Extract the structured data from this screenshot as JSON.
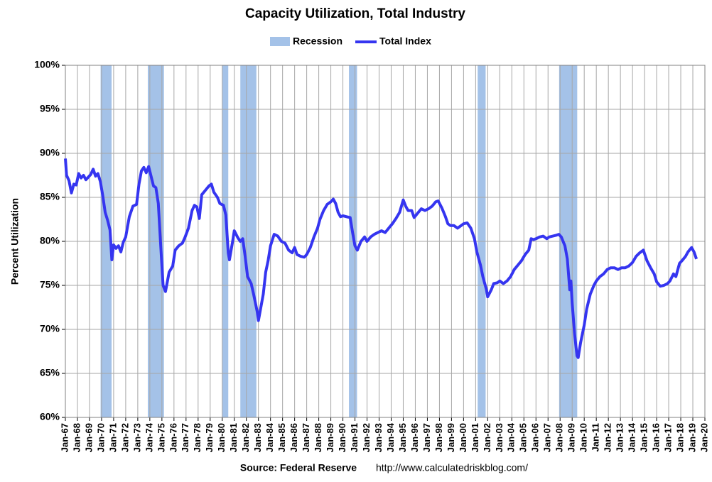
{
  "chart_data": {
    "type": "line",
    "title": "Capacity Utilization, Total Industry",
    "y_label": "Percent Utilization",
    "source": "Source: Federal Reserve",
    "url": "http://www.calculatedriskblog.com/",
    "legend": "top",
    "grid": true,
    "xlim": [
      1967,
      2020
    ],
    "ylim": [
      60,
      100
    ],
    "yticks": [
      {
        "value": 60,
        "label": "60%"
      },
      {
        "value": 65,
        "label": "65%"
      },
      {
        "value": 70,
        "label": "70%"
      },
      {
        "value": 75,
        "label": "75%"
      },
      {
        "value": 80,
        "label": "80%"
      },
      {
        "value": 85,
        "label": "85%"
      },
      {
        "value": 90,
        "label": "90%"
      },
      {
        "value": 95,
        "label": "95%"
      },
      {
        "value": 100,
        "label": "100%"
      }
    ],
    "xticks": [
      {
        "value": 1967,
        "label": "Jan-67"
      },
      {
        "value": 1968,
        "label": "Jan-68"
      },
      {
        "value": 1969,
        "label": "Jan-69"
      },
      {
        "value": 1970,
        "label": "Jan-70"
      },
      {
        "value": 1971,
        "label": "Jan-71"
      },
      {
        "value": 1972,
        "label": "Jan-72"
      },
      {
        "value": 1973,
        "label": "Jan-73"
      },
      {
        "value": 1974,
        "label": "Jan-74"
      },
      {
        "value": 1975,
        "label": "Jan-75"
      },
      {
        "value": 1976,
        "label": "Jan-76"
      },
      {
        "value": 1977,
        "label": "Jan-77"
      },
      {
        "value": 1978,
        "label": "Jan-78"
      },
      {
        "value": 1979,
        "label": "Jan-79"
      },
      {
        "value": 1980,
        "label": "Jan-80"
      },
      {
        "value": 1981,
        "label": "Jan-81"
      },
      {
        "value": 1982,
        "label": "Jan-82"
      },
      {
        "value": 1983,
        "label": "Jan-83"
      },
      {
        "value": 1984,
        "label": "Jan-84"
      },
      {
        "value": 1985,
        "label": "Jan-85"
      },
      {
        "value": 1986,
        "label": "Jan-86"
      },
      {
        "value": 1987,
        "label": "Jan-87"
      },
      {
        "value": 1988,
        "label": "Jan-88"
      },
      {
        "value": 1989,
        "label": "Jan-89"
      },
      {
        "value": 1990,
        "label": "Jan-90"
      },
      {
        "value": 1991,
        "label": "Jan-91"
      },
      {
        "value": 1992,
        "label": "Jan-92"
      },
      {
        "value": 1993,
        "label": "Jan-93"
      },
      {
        "value": 1994,
        "label": "Jan-94"
      },
      {
        "value": 1995,
        "label": "Jan-95"
      },
      {
        "value": 1996,
        "label": "Jan-96"
      },
      {
        "value": 1997,
        "label": "Jan-97"
      },
      {
        "value": 1998,
        "label": "Jan-98"
      },
      {
        "value": 1999,
        "label": "Jan-99"
      },
      {
        "value": 2000,
        "label": "Jan-00"
      },
      {
        "value": 2001,
        "label": "Jan-01"
      },
      {
        "value": 2002,
        "label": "Jan-02"
      },
      {
        "value": 2003,
        "label": "Jan-03"
      },
      {
        "value": 2004,
        "label": "Jan-04"
      },
      {
        "value": 2005,
        "label": "Jan-05"
      },
      {
        "value": 2006,
        "label": "Jan-06"
      },
      {
        "value": 2007,
        "label": "Jan-07"
      },
      {
        "value": 2008,
        "label": "Jan-08"
      },
      {
        "value": 2009,
        "label": "Jan-09"
      },
      {
        "value": 2010,
        "label": "Jan-10"
      },
      {
        "value": 2011,
        "label": "Jan-11"
      },
      {
        "value": 2012,
        "label": "Jan-12"
      },
      {
        "value": 2013,
        "label": "Jan-13"
      },
      {
        "value": 2014,
        "label": "Jan-14"
      },
      {
        "value": 2015,
        "label": "Jan-15"
      },
      {
        "value": 2016,
        "label": "Jan-16"
      },
      {
        "value": 2017,
        "label": "Jan-17"
      },
      {
        "value": 2018,
        "label": "Jan-18"
      },
      {
        "value": 2019,
        "label": "Jan-19"
      },
      {
        "value": 2020,
        "label": "Jan-20"
      }
    ],
    "recessions": {
      "name": "Recession",
      "color": "#a4c2e8",
      "start": [
        1969.92,
        1973.83,
        1980.0,
        1981.5,
        1990.5,
        2001.17,
        2007.92
      ],
      "end": [
        1970.83,
        1975.17,
        1980.5,
        1982.83,
        1991.17,
        2001.83,
        2009.42
      ]
    },
    "x": [
      1967.0,
      1967.1,
      1967.3,
      1967.5,
      1967.7,
      1967.9,
      1968.1,
      1968.3,
      1968.5,
      1968.7,
      1968.9,
      1969.1,
      1969.3,
      1969.5,
      1969.7,
      1969.9,
      1970.1,
      1970.3,
      1970.5,
      1970.7,
      1970.85,
      1971.0,
      1971.2,
      1971.4,
      1971.6,
      1971.8,
      1972.0,
      1972.3,
      1972.6,
      1972.9,
      1973.1,
      1973.3,
      1973.5,
      1973.7,
      1973.9,
      1974.1,
      1974.3,
      1974.5,
      1974.7,
      1974.9,
      1975.1,
      1975.3,
      1975.6,
      1975.9,
      1976.1,
      1976.4,
      1976.7,
      1976.9,
      1977.2,
      1977.5,
      1977.7,
      1977.9,
      1978.1,
      1978.3,
      1978.6,
      1978.9,
      1979.1,
      1979.3,
      1979.6,
      1979.8,
      1980.1,
      1980.3,
      1980.5,
      1980.6,
      1980.9,
      1981.0,
      1981.3,
      1981.5,
      1981.7,
      1981.9,
      1982.1,
      1982.4,
      1982.6,
      1982.9,
      1983.0,
      1983.2,
      1983.4,
      1983.6,
      1983.8,
      1984.0,
      1984.3,
      1984.6,
      1984.9,
      1985.2,
      1985.5,
      1985.8,
      1986.0,
      1986.2,
      1986.5,
      1986.8,
      1987.0,
      1987.3,
      1987.6,
      1987.9,
      1988.1,
      1988.4,
      1988.7,
      1989.0,
      1989.2,
      1989.4,
      1989.6,
      1989.8,
      1990.0,
      1990.3,
      1990.6,
      1990.8,
      1991.0,
      1991.2,
      1991.5,
      1991.8,
      1992.0,
      1992.3,
      1992.6,
      1992.9,
      1993.2,
      1993.5,
      1993.8,
      1994.1,
      1994.4,
      1994.7,
      1995.0,
      1995.2,
      1995.4,
      1995.7,
      1995.9,
      1996.2,
      1996.5,
      1996.8,
      1997.1,
      1997.4,
      1997.7,
      1997.9,
      1998.2,
      1998.5,
      1998.7,
      1998.9,
      1999.2,
      1999.5,
      1999.8,
      2000.0,
      2000.3,
      2000.6,
      2000.9,
      2001.1,
      2001.4,
      2001.6,
      2001.9,
      2002.0,
      2002.3,
      2002.5,
      2002.8,
      2003.0,
      2003.3,
      2003.6,
      2003.9,
      2004.2,
      2004.5,
      2004.8,
      2005.1,
      2005.4,
      2005.6,
      2005.8,
      2006.0,
      2006.3,
      2006.6,
      2006.9,
      2007.1,
      2007.4,
      2007.7,
      2007.9,
      2008.1,
      2008.4,
      2008.6,
      2008.8,
      2008.9,
      2009.0,
      2009.2,
      2009.4,
      2009.5,
      2009.7,
      2010.0,
      2010.2,
      2010.5,
      2010.8,
      2011.0,
      2011.3,
      2011.6,
      2011.9,
      2012.2,
      2012.5,
      2012.8,
      2013.1,
      2013.4,
      2013.7,
      2014.0,
      2014.3,
      2014.6,
      2014.9,
      2015.2,
      2015.5,
      2015.8,
      2016.0,
      2016.3,
      2016.6,
      2016.9,
      2017.1,
      2017.4,
      2017.6,
      2017.9,
      2018.1,
      2018.4,
      2018.6,
      2018.9,
      2019.1,
      2019.3
    ],
    "series": [
      {
        "name": "Total Index",
        "color": "#3535f0",
        "values": [
          89.4,
          87.5,
          86.9,
          85.5,
          86.5,
          86.4,
          87.7,
          87.2,
          87.5,
          87.0,
          87.3,
          87.6,
          88.2,
          87.4,
          87.7,
          86.8,
          85.2,
          83.3,
          82.4,
          81.3,
          77.9,
          79.6,
          79.2,
          79.5,
          78.8,
          79.9,
          80.5,
          82.8,
          84.0,
          84.2,
          86.5,
          88.0,
          88.4,
          87.8,
          88.5,
          87.4,
          86.3,
          86.1,
          84.3,
          79.5,
          75.0,
          74.3,
          76.5,
          77.2,
          79.0,
          79.5,
          79.8,
          80.4,
          81.5,
          83.5,
          84.1,
          83.9,
          82.6,
          85.3,
          85.8,
          86.3,
          86.5,
          85.6,
          85.0,
          84.3,
          84.1,
          83.0,
          78.7,
          77.9,
          80.3,
          81.2,
          80.4,
          80.0,
          80.3,
          78.3,
          76.0,
          75.2,
          74.0,
          72.0,
          71.0,
          72.5,
          74.0,
          76.5,
          77.8,
          79.5,
          80.8,
          80.6,
          80.0,
          79.8,
          79.0,
          78.7,
          79.3,
          78.5,
          78.3,
          78.2,
          78.5,
          79.3,
          80.5,
          81.5,
          82.5,
          83.5,
          84.2,
          84.5,
          84.8,
          84.3,
          83.3,
          82.8,
          82.9,
          82.8,
          82.7,
          81.0,
          79.5,
          79.0,
          80.0,
          80.5,
          80.0,
          80.5,
          80.8,
          81.0,
          81.2,
          81.0,
          81.5,
          82.0,
          82.6,
          83.3,
          84.7,
          84.0,
          83.5,
          83.5,
          82.7,
          83.2,
          83.7,
          83.5,
          83.7,
          84.0,
          84.5,
          84.6,
          83.8,
          82.8,
          82.0,
          81.8,
          81.8,
          81.5,
          81.8,
          82.0,
          82.1,
          81.5,
          80.3,
          78.8,
          77.3,
          76.0,
          74.5,
          73.7,
          74.5,
          75.2,
          75.3,
          75.5,
          75.2,
          75.5,
          76.0,
          76.8,
          77.3,
          77.8,
          78.5,
          79.0,
          80.3,
          80.2,
          80.3,
          80.5,
          80.6,
          80.3,
          80.5,
          80.6,
          80.7,
          80.8,
          80.5,
          79.5,
          78.0,
          74.5,
          75.5,
          73.0,
          69.5,
          67.0,
          66.8,
          68.5,
          70.5,
          72.3,
          74.0,
          75.0,
          75.5,
          76.0,
          76.3,
          76.8,
          77.0,
          77.0,
          76.8,
          77.0,
          77.0,
          77.2,
          77.6,
          78.3,
          78.7,
          79.0,
          77.8,
          77.0,
          76.3,
          75.4,
          74.9,
          75.0,
          75.2,
          75.5,
          76.3,
          76.0,
          77.5,
          77.8,
          78.3,
          78.8,
          79.3,
          78.8,
          78.0
        ]
      }
    ]
  }
}
